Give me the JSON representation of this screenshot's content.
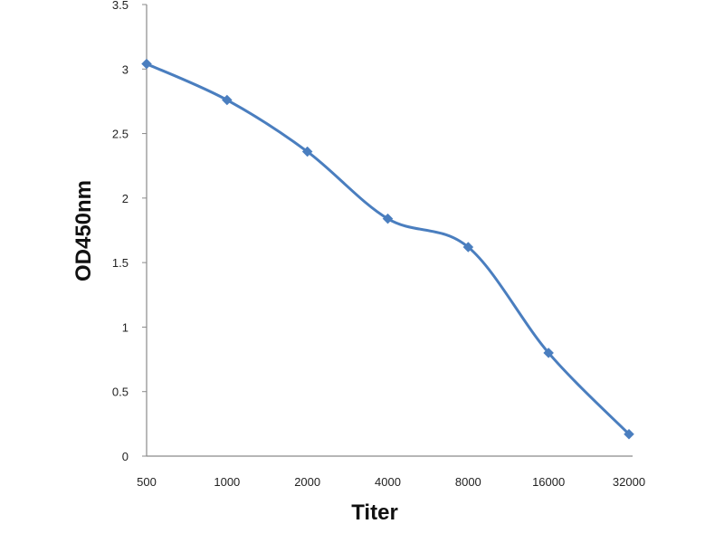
{
  "chart_data": {
    "type": "line",
    "categories": [
      "500",
      "1000",
      "2000",
      "4000",
      "8000",
      "16000",
      "32000"
    ],
    "series": [
      {
        "values": [
          3.04,
          2.76,
          2.36,
          1.84,
          1.62,
          0.8,
          0.17
        ],
        "color": "#4a7ebf",
        "marker": "diamond",
        "smooth": true
      }
    ],
    "xlabel": "Titer",
    "ylabel": "OD450nm",
    "ylim": [
      0,
      3.5
    ],
    "yticks": [
      "0",
      "0.5",
      "1",
      "1.5",
      "2",
      "2.5",
      "3",
      "3.5"
    ],
    "grid": false
  }
}
